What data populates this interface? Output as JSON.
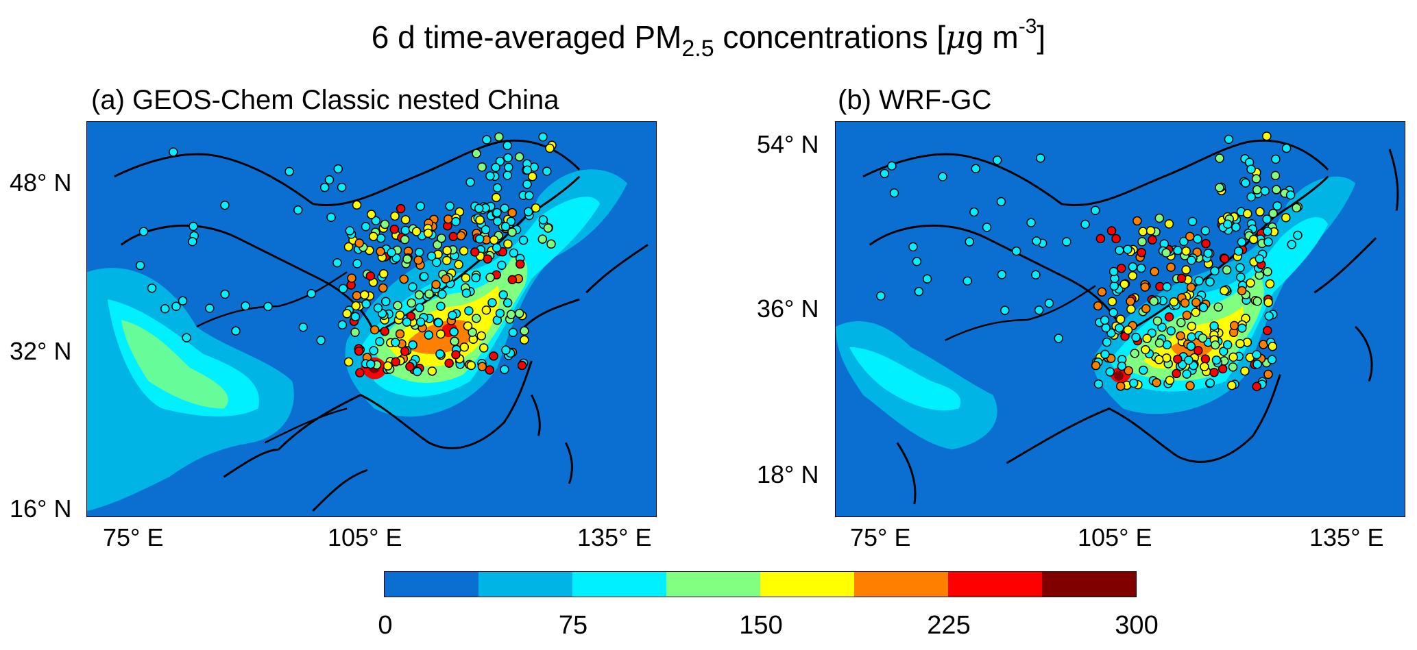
{
  "figure": {
    "title_main": "6 d time-averaged PM",
    "title_sub": "2.5",
    "title_after": " concentrations [",
    "title_mu": "μ",
    "title_unit": "g m",
    "title_sup": "-3",
    "title_close": "]"
  },
  "panels": [
    {
      "title": "(a) GEOS-Chem Classic nested China",
      "lat_ticks": [
        "48° N",
        "32° N",
        "16° N"
      ],
      "lon_ticks": [
        "75° E",
        "105° E",
        "135° E"
      ]
    },
    {
      "title": "(b) WRF-GC",
      "lat_ticks": [
        "54° N",
        "36° N",
        "18° N"
      ],
      "lon_ticks": [
        "75° E",
        "105° E",
        "135° E"
      ]
    }
  ],
  "colorbar": {
    "colors": [
      "#0a6fd0",
      "#00b4e6",
      "#00f0ff",
      "#80ff80",
      "#ffff00",
      "#ff8000",
      "#ff0000",
      "#800000"
    ],
    "tick_labels": [
      "0",
      "75",
      "150",
      "225",
      "300"
    ],
    "range": [
      0,
      300
    ]
  }
}
